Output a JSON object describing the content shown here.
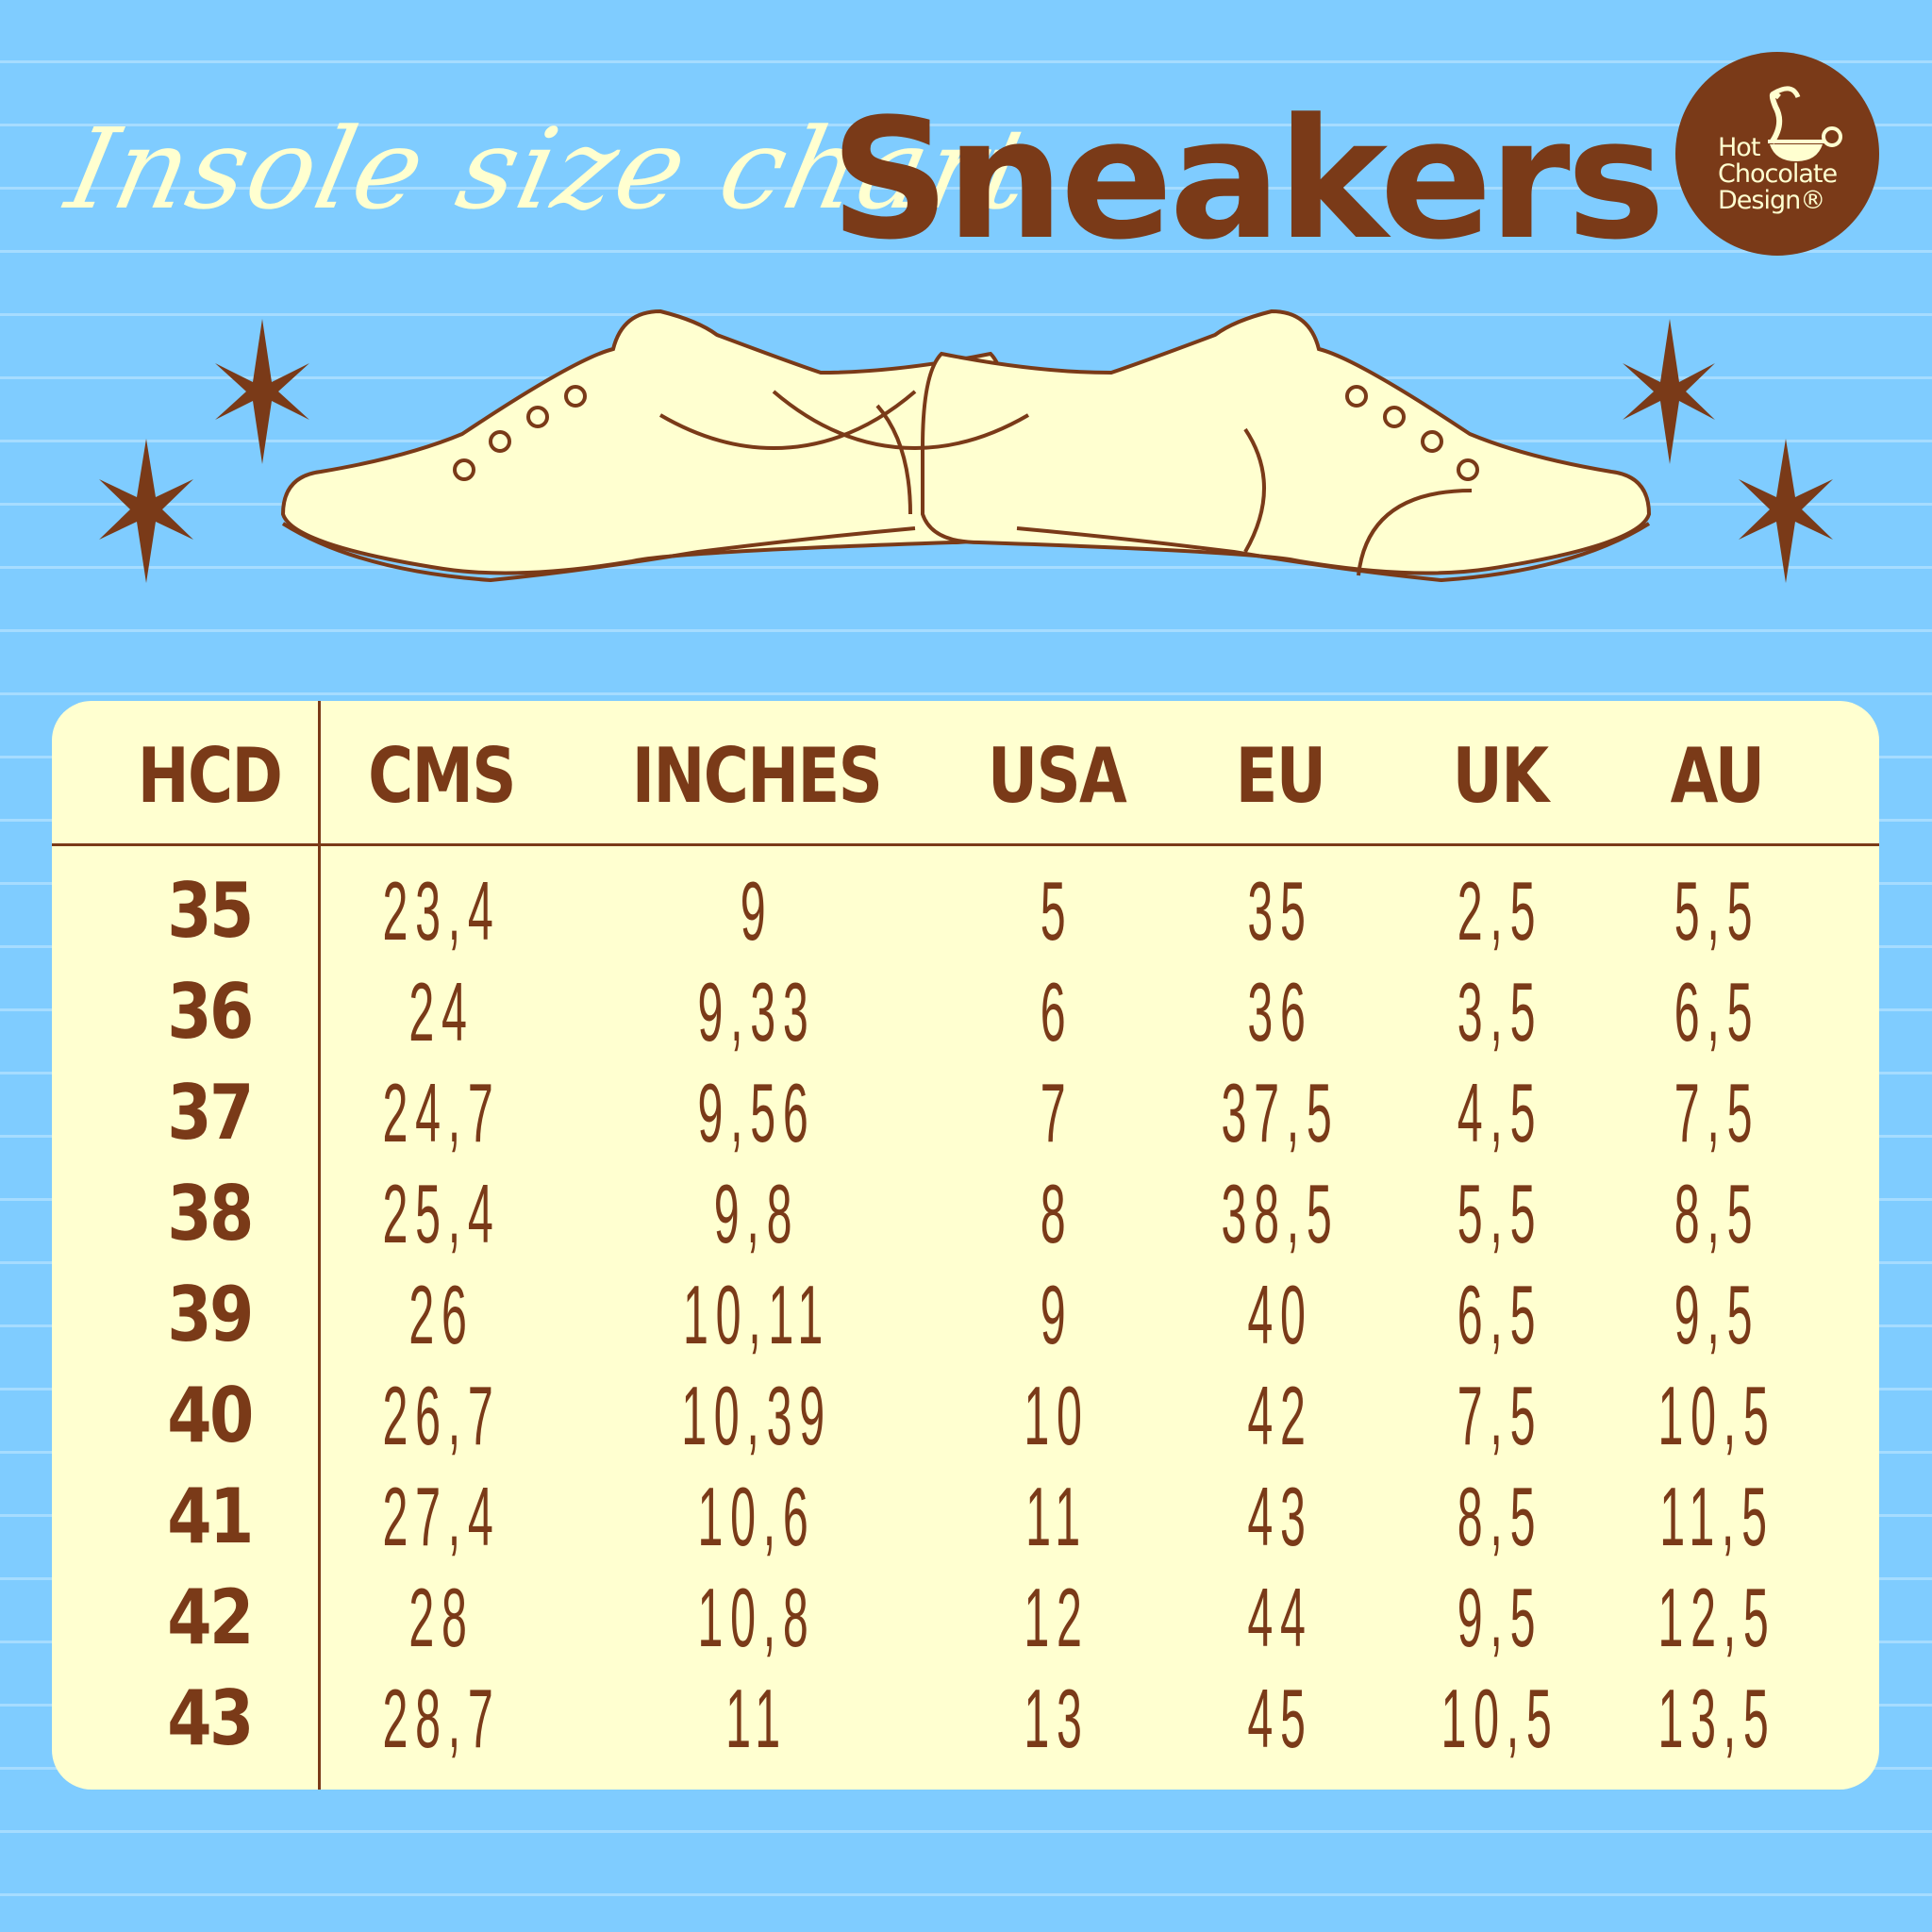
{
  "title": {
    "script": "Insole size chart",
    "main": "Sneakers"
  },
  "logo": {
    "line1": "Hot",
    "line2": "Chocolate",
    "line3": "Design®"
  },
  "colors": {
    "background": "#7fccff",
    "brown": "#7a3a18",
    "cream": "#ffffd0"
  },
  "table": {
    "headers": [
      "HCD",
      "CMS",
      "INCHES",
      "USA",
      "EU",
      "UK",
      "AU"
    ],
    "rows": [
      [
        "35",
        "23,4",
        "9",
        "5",
        "35",
        "2,5",
        "5,5"
      ],
      [
        "36",
        "24",
        "9,33",
        "6",
        "36",
        "3,5",
        "6,5"
      ],
      [
        "37",
        "24,7",
        "9,56",
        "7",
        "37,5",
        "4,5",
        "7,5"
      ],
      [
        "38",
        "25,4",
        "9,8",
        "8",
        "38,5",
        "5,5",
        "8,5"
      ],
      [
        "39",
        "26",
        "10,11",
        "9",
        "40",
        "6,5",
        "9,5"
      ],
      [
        "40",
        "26,7",
        "10,39",
        "10",
        "42",
        "7,5",
        "10,5"
      ],
      [
        "41",
        "27,4",
        "10,6",
        "11",
        "43",
        "8,5",
        "11,5"
      ],
      [
        "42",
        "28",
        "10,8",
        "12",
        "44",
        "9,5",
        "12,5"
      ],
      [
        "43",
        "28,7",
        "11",
        "13",
        "45",
        "10,5",
        "13,5"
      ]
    ]
  }
}
